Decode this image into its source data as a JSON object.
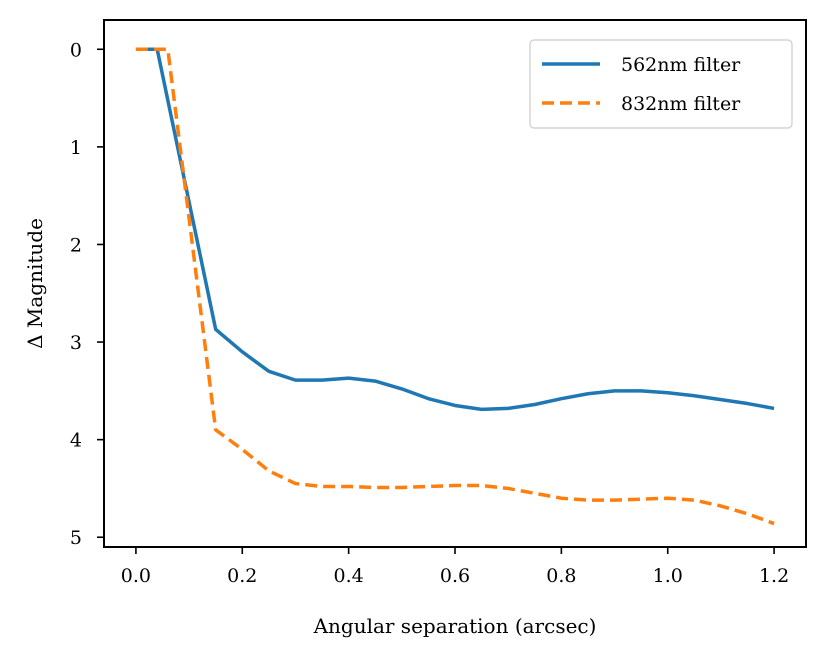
{
  "chart_data": {
    "type": "line",
    "title": "",
    "xlabel": "Angular separation (arcsec)",
    "ylabel": "Δ Magnitude",
    "xlim": [
      -0.06,
      1.26
    ],
    "ylim": [
      5.1,
      -0.3
    ],
    "y_inverted": true,
    "grid": false,
    "legend_position": "upper right",
    "x_ticks": [
      0.0,
      0.2,
      0.4,
      0.6,
      0.8,
      1.0,
      1.2
    ],
    "x_tick_labels": [
      "0.0",
      "0.2",
      "0.4",
      "0.6",
      "0.8",
      "1.0",
      "1.2"
    ],
    "y_ticks": [
      0,
      1,
      2,
      3,
      4,
      5
    ],
    "y_tick_labels": [
      "0",
      "1",
      "2",
      "3",
      "4",
      "5"
    ],
    "series": [
      {
        "name": "562nm filter",
        "color": "#1f77b4",
        "line_style": "solid",
        "x": [
          0.0,
          0.04,
          0.15,
          0.2,
          0.25,
          0.3,
          0.35,
          0.4,
          0.45,
          0.5,
          0.55,
          0.6,
          0.65,
          0.7,
          0.75,
          0.8,
          0.85,
          0.9,
          0.95,
          1.0,
          1.05,
          1.1,
          1.15,
          1.2
        ],
        "y": [
          0.0,
          0.0,
          2.87,
          3.1,
          3.3,
          3.39,
          3.39,
          3.37,
          3.4,
          3.48,
          3.58,
          3.65,
          3.69,
          3.68,
          3.64,
          3.58,
          3.53,
          3.5,
          3.5,
          3.52,
          3.55,
          3.59,
          3.63,
          3.68
        ]
      },
      {
        "name": "832nm filter",
        "color": "#ff7f0e",
        "line_style": "dashed",
        "x": [
          0.0,
          0.06,
          0.15,
          0.2,
          0.25,
          0.3,
          0.35,
          0.4,
          0.45,
          0.5,
          0.55,
          0.6,
          0.65,
          0.7,
          0.75,
          0.8,
          0.85,
          0.9,
          0.95,
          1.0,
          1.05,
          1.1,
          1.15,
          1.2
        ],
        "y": [
          0.0,
          0.0,
          3.9,
          4.1,
          4.32,
          4.45,
          4.48,
          4.48,
          4.49,
          4.49,
          4.48,
          4.47,
          4.47,
          4.5,
          4.55,
          4.6,
          4.62,
          4.62,
          4.61,
          4.6,
          4.62,
          4.68,
          4.76,
          4.86
        ]
      }
    ]
  }
}
